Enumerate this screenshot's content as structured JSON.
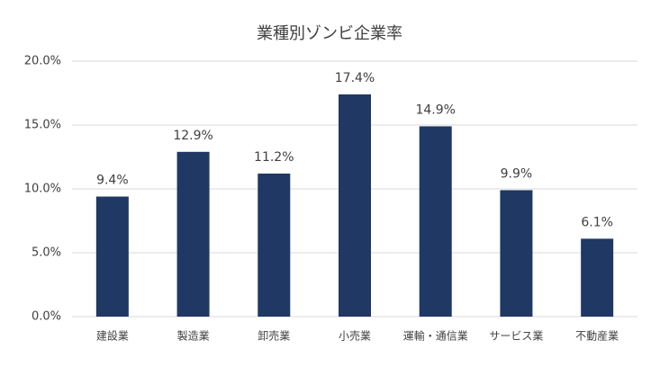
{
  "chart_data": {
    "type": "bar",
    "title": "業種別ゾンビ企業率",
    "categories": [
      "建設業",
      "製造業",
      "卸売業",
      "小売業",
      "運輸・通信業",
      "サービス業",
      "不動産業"
    ],
    "values": [
      9.4,
      12.9,
      11.2,
      17.4,
      14.9,
      9.9,
      6.1
    ],
    "value_labels": [
      "9.4%",
      "12.9%",
      "11.2%",
      "17.4%",
      "14.9%",
      "9.9%",
      "6.1%"
    ],
    "color": "#1f3864",
    "ylim": [
      0,
      20
    ],
    "yticks": [
      {
        "value": 0,
        "label": "0.0%"
      },
      {
        "value": 5,
        "label": "5.0%"
      },
      {
        "value": 10,
        "label": "10.0%"
      },
      {
        "value": 15,
        "label": "15.0%"
      },
      {
        "value": 20,
        "label": "20.0%"
      }
    ],
    "grid": true
  }
}
